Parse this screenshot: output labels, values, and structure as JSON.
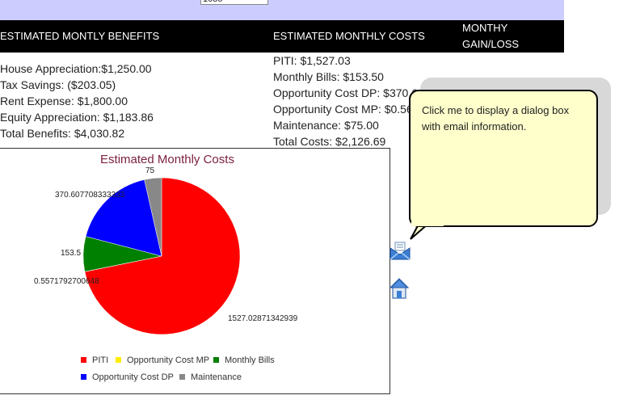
{
  "top_input": {
    "value": "1085"
  },
  "header": {
    "benefits_title": "ESTIMATED MONTLY BENEFITS",
    "costs_title": "ESTIMATED MONTHLY COSTS",
    "gain_title_line1": "MONTHY",
    "gain_title_line2": "GAIN/LOSS"
  },
  "benefits": [
    "House Appreciation:$1,250.00",
    "Tax Savings: ($203.05)",
    "Rent Expense: $1,800.00",
    "Equity Appreciation: $1,183.86",
    "Total Benefits: $4,030.82"
  ],
  "costs": [
    "PITI: $1,527.03",
    "Monthly Bills: $153.50",
    "Opportunity Cost DP: $370.6",
    "Opportunity Cost MP: $0.56",
    "Maintenance: $75.00",
    "Total Costs: $2,126.69"
  ],
  "tooltip": {
    "text": "Click me to display a dialog box with email information."
  },
  "icons": {
    "email": "email-icon",
    "home": "home-icon"
  },
  "chart_data": {
    "type": "pie",
    "title": "Estimated Monthly Costs",
    "title_color": "#7a1f3d",
    "legend_position": "bottom",
    "slices": [
      {
        "name": "PITI",
        "value": 1527.02871342939,
        "label": "1527.02871342939",
        "color": "#ff0000"
      },
      {
        "name": "Opportunity Cost MP",
        "value": 0.5571792700648,
        "label": "0.5571792700648",
        "color": "#ffee00"
      },
      {
        "name": "Monthly Bills",
        "value": 153.5,
        "label": "153.5",
        "color": "#008000"
      },
      {
        "name": "Opportunity Cost DP",
        "value": 370.607708333333,
        "label": "370.607708333333",
        "color": "#0000ff"
      },
      {
        "name": "Maintenance",
        "value": 75,
        "label": "75",
        "color": "#888888"
      }
    ],
    "legend_rows": [
      [
        "PITI",
        "Opportunity Cost MP",
        "Monthly Bills"
      ],
      [
        "Opportunity Cost DP",
        "Maintenance"
      ]
    ]
  }
}
